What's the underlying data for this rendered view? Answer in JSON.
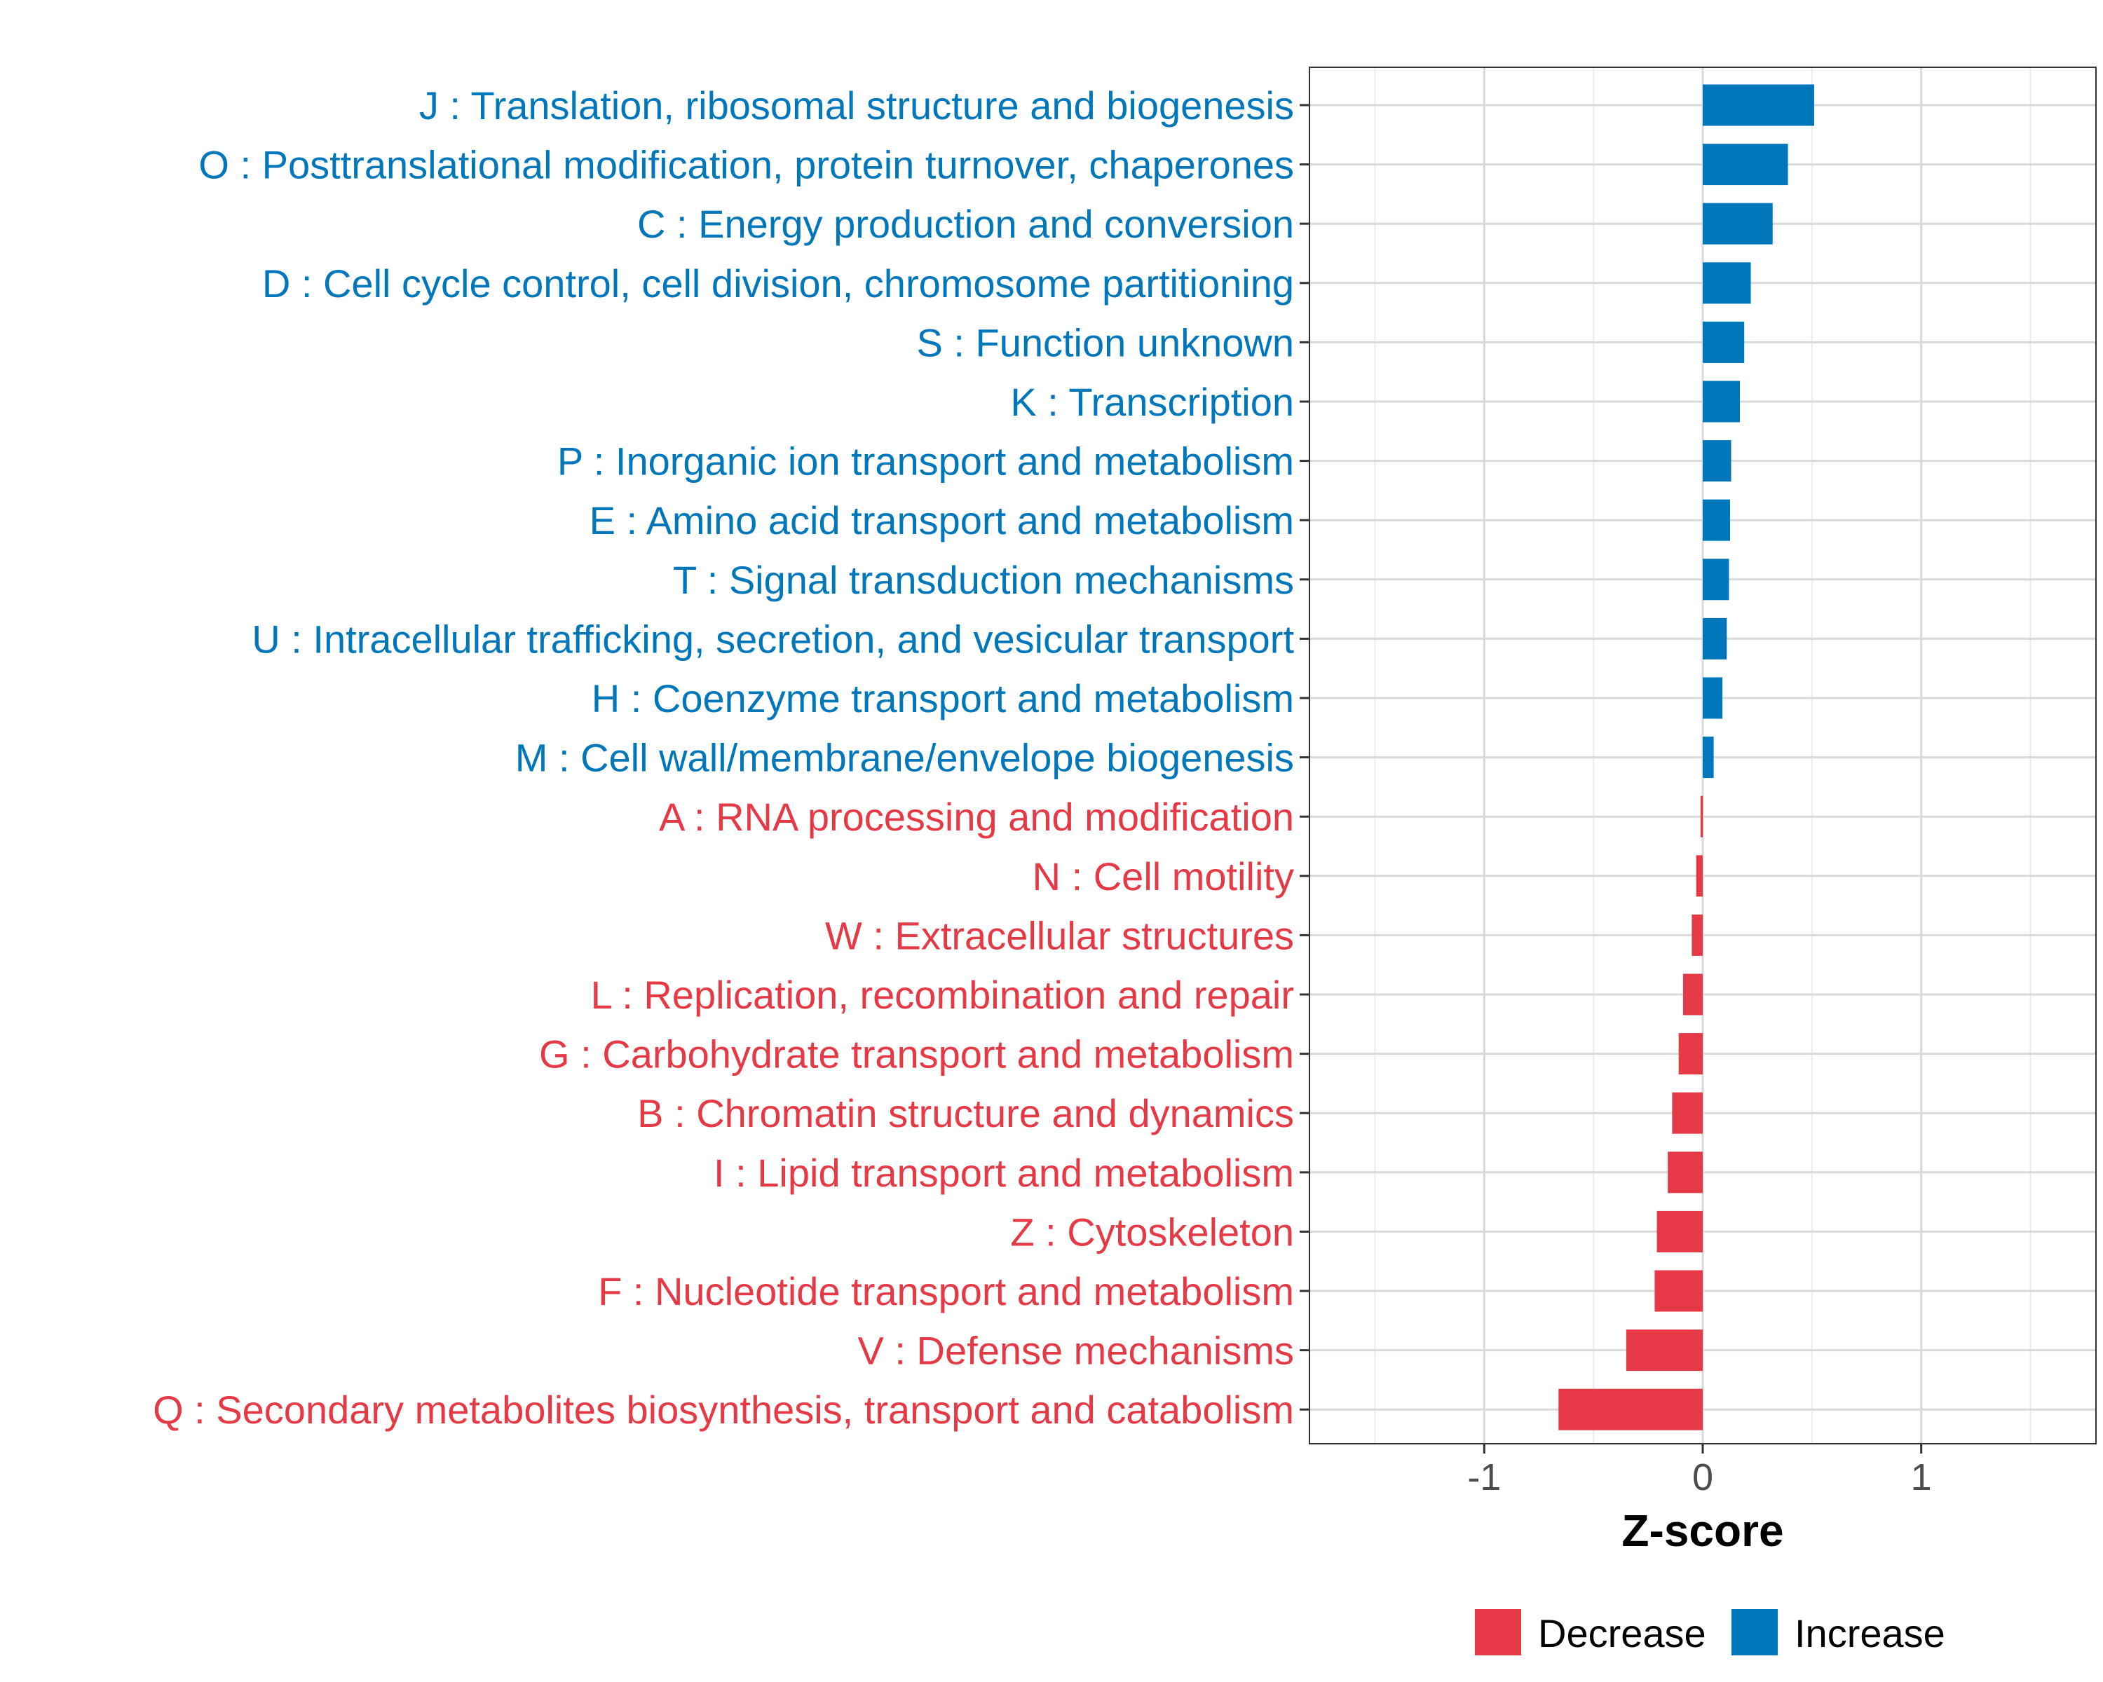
{
  "chart_data": {
    "type": "bar",
    "orientation": "horizontal",
    "xlabel": "Z-score",
    "ylabel": "",
    "xlim": [
      -1.8,
      1.8
    ],
    "x_ticks": [
      {
        "value": -1,
        "label": "-1"
      },
      {
        "value": 0,
        "label": "0"
      },
      {
        "value": 1,
        "label": "1"
      }
    ],
    "grid": true,
    "colors": {
      "Decrease": "#E63946",
      "Increase": "#0077BB"
    },
    "legend": {
      "position": "bottom",
      "entries": [
        {
          "key": "Decrease",
          "label": "Decrease"
        },
        {
          "key": "Increase",
          "label": "Increase"
        }
      ]
    },
    "categories": [
      {
        "label": "J : Translation, ribosomal structure and biogenesis",
        "value": 0.51,
        "group": "Increase"
      },
      {
        "label": "O : Posttranslational modification, protein turnover, chaperones",
        "value": 0.39,
        "group": "Increase"
      },
      {
        "label": "C : Energy production and conversion",
        "value": 0.32,
        "group": "Increase"
      },
      {
        "label": "D : Cell cycle control, cell division, chromosome partitioning",
        "value": 0.22,
        "group": "Increase"
      },
      {
        "label": "S : Function unknown",
        "value": 0.19,
        "group": "Increase"
      },
      {
        "label": "K : Transcription",
        "value": 0.17,
        "group": "Increase"
      },
      {
        "label": "P : Inorganic ion transport and metabolism",
        "value": 0.13,
        "group": "Increase"
      },
      {
        "label": "E : Amino acid transport and metabolism",
        "value": 0.125,
        "group": "Increase"
      },
      {
        "label": "T : Signal transduction mechanisms",
        "value": 0.12,
        "group": "Increase"
      },
      {
        "label": "U : Intracellular trafficking, secretion, and vesicular transport",
        "value": 0.11,
        "group": "Increase"
      },
      {
        "label": "H : Coenzyme transport and metabolism",
        "value": 0.09,
        "group": "Increase"
      },
      {
        "label": "M : Cell wall/membrane/envelope biogenesis",
        "value": 0.05,
        "group": "Increase"
      },
      {
        "label": "A : RNA processing and modification",
        "value": -0.01,
        "group": "Decrease"
      },
      {
        "label": "N : Cell motility",
        "value": -0.03,
        "group": "Decrease"
      },
      {
        "label": "W : Extracellular structures",
        "value": -0.05,
        "group": "Decrease"
      },
      {
        "label": "L : Replication, recombination and repair",
        "value": -0.09,
        "group": "Decrease"
      },
      {
        "label": "G : Carbohydrate transport and metabolism",
        "value": -0.11,
        "group": "Decrease"
      },
      {
        "label": "B : Chromatin structure and dynamics",
        "value": -0.14,
        "group": "Decrease"
      },
      {
        "label": "I : Lipid transport and metabolism",
        "value": -0.16,
        "group": "Decrease"
      },
      {
        "label": "Z : Cytoskeleton",
        "value": -0.21,
        "group": "Decrease"
      },
      {
        "label": "F : Nucleotide transport and metabolism",
        "value": -0.22,
        "group": "Decrease"
      },
      {
        "label": "V : Defense mechanisms",
        "value": -0.35,
        "group": "Decrease"
      },
      {
        "label": "Q : Secondary metabolites biosynthesis, transport and catabolism",
        "value": -0.66,
        "group": "Decrease"
      }
    ]
  }
}
